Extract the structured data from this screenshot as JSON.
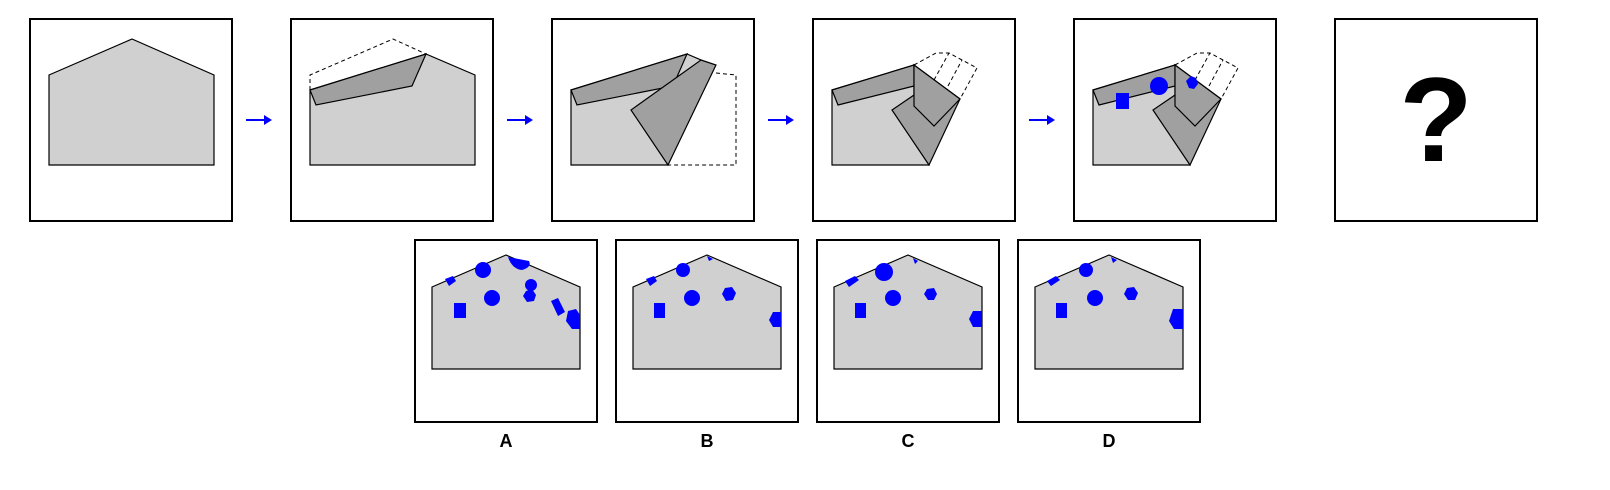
{
  "puzzle": {
    "question_mark": "?",
    "options": [
      {
        "label": "A"
      },
      {
        "label": "B"
      },
      {
        "label": "C"
      },
      {
        "label": "D"
      }
    ]
  },
  "colors": {
    "paper": "#d0d0d0",
    "fold": "#a0a0a0",
    "hole": "#0000ff",
    "arrow": "#0000ff",
    "outline": "#000000"
  }
}
